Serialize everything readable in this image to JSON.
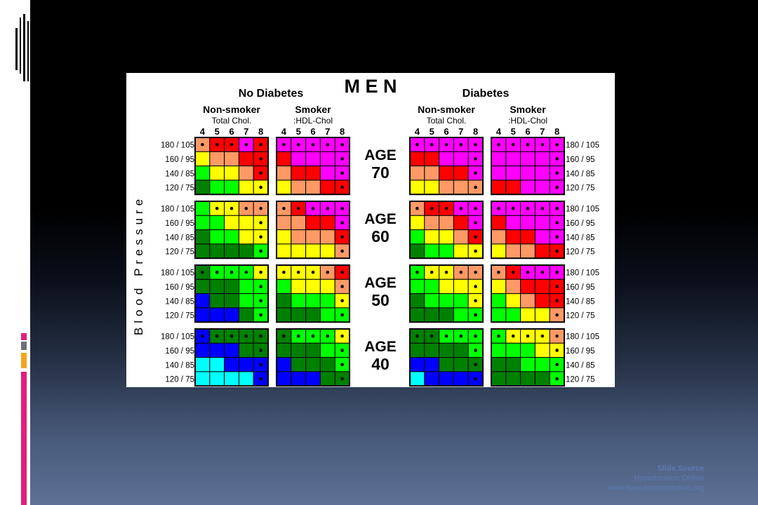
{
  "slide": {
    "source_heading": "Slide Source",
    "source_org": "Hypertension Online",
    "source_url": "www.hypertensiononline.org"
  },
  "colors": {
    "1": "#00FFFF",
    "2": "#0000FF",
    "3": "#008000",
    "4": "#00FF00",
    "5": "#FFFF00",
    "6": "#FF9966",
    "7": "#FF0000",
    "8": "#FF00FF"
  },
  "chart_data": {
    "type": "heatmap",
    "title": "M E N",
    "y_axis_label": "Blood Pressure",
    "group_labels": [
      "No Diabetes",
      "Diabetes"
    ],
    "subgroup_labels": [
      "Non-smoker",
      "Smoker"
    ],
    "subgroup_sublabels": [
      "Total Chol.",
      ":HDL-Chol"
    ],
    "column_labels": [
      "4",
      "5",
      "6",
      "7",
      "8"
    ],
    "row_labels": [
      "180 / 105",
      "160 / 95",
      "140 / 85",
      "120 / 75"
    ],
    "age_word": "AGE",
    "ages": [
      {
        "age": "70",
        "panels": [
          {
            "rows": [
              [
                6,
                7,
                7,
                8,
                7
              ],
              [
                5,
                6,
                6,
                7,
                7
              ],
              [
                4,
                5,
                5,
                6,
                7
              ],
              [
                3,
                4,
                4,
                5,
                5
              ]
            ],
            "dots": [
              [
                1,
                1,
                1,
                1,
                1
              ],
              [
                0,
                0,
                0,
                0,
                1
              ],
              [
                0,
                0,
                0,
                0,
                1
              ],
              [
                0,
                0,
                0,
                0,
                1
              ]
            ]
          },
          {
            "rows": [
              [
                8,
                8,
                8,
                8,
                8
              ],
              [
                7,
                8,
                8,
                8,
                8
              ],
              [
                6,
                7,
                7,
                8,
                8
              ],
              [
                5,
                6,
                6,
                7,
                7
              ]
            ],
            "dots": [
              [
                1,
                1,
                1,
                1,
                1
              ],
              [
                0,
                0,
                0,
                0,
                1
              ],
              [
                0,
                0,
                0,
                0,
                1
              ],
              [
                0,
                0,
                0,
                0,
                1
              ]
            ]
          },
          {
            "rows": [
              [
                8,
                8,
                8,
                8,
                8
              ],
              [
                7,
                7,
                8,
                8,
                8
              ],
              [
                6,
                6,
                7,
                7,
                8
              ],
              [
                5,
                5,
                6,
                6,
                6
              ]
            ],
            "dots": [
              [
                1,
                1,
                1,
                1,
                1
              ],
              [
                0,
                0,
                0,
                0,
                1
              ],
              [
                0,
                0,
                0,
                0,
                1
              ],
              [
                0,
                0,
                0,
                0,
                1
              ]
            ]
          },
          {
            "rows": [
              [
                8,
                8,
                8,
                8,
                8
              ],
              [
                8,
                8,
                8,
                8,
                8
              ],
              [
                8,
                8,
                8,
                8,
                8
              ],
              [
                7,
                7,
                8,
                8,
                8
              ]
            ],
            "dots": [
              [
                1,
                1,
                1,
                1,
                1
              ],
              [
                0,
                0,
                0,
                0,
                1
              ],
              [
                0,
                0,
                0,
                0,
                1
              ],
              [
                0,
                0,
                0,
                0,
                1
              ]
            ]
          }
        ]
      },
      {
        "age": "60",
        "panels": [
          {
            "rows": [
              [
                4,
                5,
                5,
                6,
                6
              ],
              [
                4,
                4,
                5,
                5,
                5
              ],
              [
                3,
                4,
                4,
                5,
                5
              ],
              [
                3,
                3,
                3,
                3,
                4
              ]
            ],
            "dots": [
              [
                0,
                1,
                1,
                1,
                1
              ],
              [
                0,
                0,
                0,
                0,
                1
              ],
              [
                0,
                0,
                0,
                0,
                1
              ],
              [
                0,
                0,
                0,
                0,
                1
              ]
            ]
          },
          {
            "rows": [
              [
                6,
                7,
                8,
                8,
                8
              ],
              [
                6,
                6,
                7,
                7,
                8
              ],
              [
                5,
                6,
                6,
                6,
                7
              ],
              [
                5,
                5,
                5,
                5,
                6
              ]
            ],
            "dots": [
              [
                1,
                1,
                1,
                1,
                1
              ],
              [
                0,
                0,
                0,
                0,
                1
              ],
              [
                0,
                0,
                0,
                0,
                1
              ],
              [
                0,
                0,
                0,
                0,
                1
              ]
            ]
          },
          {
            "rows": [
              [
                6,
                7,
                7,
                8,
                8
              ],
              [
                5,
                6,
                6,
                7,
                8
              ],
              [
                4,
                5,
                5,
                6,
                7
              ],
              [
                3,
                4,
                4,
                5,
                5
              ]
            ],
            "dots": [
              [
                1,
                1,
                1,
                1,
                1
              ],
              [
                0,
                0,
                0,
                0,
                1
              ],
              [
                0,
                0,
                0,
                0,
                1
              ],
              [
                0,
                0,
                0,
                0,
                1
              ]
            ]
          },
          {
            "rows": [
              [
                8,
                8,
                8,
                8,
                8
              ],
              [
                7,
                8,
                8,
                8,
                8
              ],
              [
                6,
                7,
                7,
                8,
                8
              ],
              [
                5,
                6,
                6,
                7,
                7
              ]
            ],
            "dots": [
              [
                1,
                1,
                1,
                1,
                1
              ],
              [
                0,
                0,
                0,
                0,
                1
              ],
              [
                0,
                0,
                0,
                0,
                1
              ],
              [
                0,
                0,
                0,
                0,
                1
              ]
            ]
          }
        ]
      },
      {
        "age": "50",
        "panels": [
          {
            "rows": [
              [
                3,
                4,
                4,
                4,
                5
              ],
              [
                3,
                3,
                3,
                4,
                4
              ],
              [
                2,
                3,
                3,
                4,
                4
              ],
              [
                2,
                2,
                2,
                3,
                4
              ]
            ],
            "dots": [
              [
                1,
                1,
                1,
                1,
                1
              ],
              [
                0,
                0,
                0,
                0,
                1
              ],
              [
                0,
                0,
                0,
                0,
                1
              ],
              [
                0,
                0,
                0,
                0,
                1
              ]
            ]
          },
          {
            "rows": [
              [
                5,
                5,
                5,
                6,
                7
              ],
              [
                4,
                5,
                5,
                5,
                6
              ],
              [
                3,
                4,
                4,
                4,
                5
              ],
              [
                3,
                3,
                3,
                4,
                4
              ]
            ],
            "dots": [
              [
                1,
                1,
                1,
                1,
                1
              ],
              [
                0,
                0,
                0,
                0,
                1
              ],
              [
                0,
                0,
                0,
                0,
                1
              ],
              [
                0,
                0,
                0,
                0,
                1
              ]
            ]
          },
          {
            "rows": [
              [
                4,
                5,
                5,
                6,
                6
              ],
              [
                4,
                4,
                5,
                5,
                5
              ],
              [
                3,
                4,
                4,
                4,
                5
              ],
              [
                3,
                3,
                3,
                4,
                4
              ]
            ],
            "dots": [
              [
                1,
                1,
                1,
                1,
                1
              ],
              [
                0,
                0,
                0,
                0,
                1
              ],
              [
                0,
                0,
                0,
                0,
                1
              ],
              [
                0,
                0,
                0,
                0,
                1
              ]
            ]
          },
          {
            "rows": [
              [
                6,
                7,
                8,
                8,
                8
              ],
              [
                5,
                6,
                7,
                7,
                7
              ],
              [
                4,
                5,
                6,
                7,
                7
              ],
              [
                4,
                4,
                5,
                5,
                6
              ]
            ],
            "dots": [
              [
                1,
                1,
                1,
                1,
                1
              ],
              [
                0,
                0,
                0,
                0,
                1
              ],
              [
                0,
                0,
                0,
                0,
                1
              ],
              [
                0,
                0,
                0,
                0,
                1
              ]
            ]
          }
        ]
      },
      {
        "age": "40",
        "panels": [
          {
            "rows": [
              [
                2,
                3,
                3,
                3,
                3
              ],
              [
                2,
                2,
                2,
                3,
                3
              ],
              [
                1,
                1,
                2,
                2,
                2
              ],
              [
                1,
                1,
                1,
                1,
                2
              ]
            ],
            "dots": [
              [
                1,
                1,
                1,
                1,
                1
              ],
              [
                0,
                0,
                0,
                0,
                1
              ],
              [
                0,
                0,
                0,
                0,
                1
              ],
              [
                0,
                0,
                0,
                0,
                1
              ]
            ]
          },
          {
            "rows": [
              [
                3,
                4,
                4,
                4,
                5
              ],
              [
                3,
                3,
                3,
                4,
                4
              ],
              [
                2,
                3,
                3,
                3,
                4
              ],
              [
                2,
                2,
                2,
                3,
                3
              ]
            ],
            "dots": [
              [
                1,
                1,
                1,
                1,
                1
              ],
              [
                0,
                0,
                0,
                0,
                1
              ],
              [
                0,
                0,
                0,
                0,
                1
              ],
              [
                0,
                0,
                0,
                0,
                1
              ]
            ]
          },
          {
            "rows": [
              [
                3,
                3,
                4,
                4,
                4
              ],
              [
                3,
                3,
                3,
                3,
                4
              ],
              [
                2,
                2,
                3,
                3,
                3
              ],
              [
                1,
                2,
                2,
                2,
                2
              ]
            ],
            "dots": [
              [
                1,
                1,
                1,
                1,
                1
              ],
              [
                0,
                0,
                0,
                0,
                1
              ],
              [
                0,
                0,
                0,
                0,
                1
              ],
              [
                0,
                0,
                0,
                0,
                1
              ]
            ]
          },
          {
            "rows": [
              [
                4,
                5,
                5,
                5,
                6
              ],
              [
                4,
                4,
                4,
                5,
                5
              ],
              [
                3,
                3,
                4,
                4,
                4
              ],
              [
                3,
                3,
                3,
                3,
                4
              ]
            ],
            "dots": [
              [
                1,
                1,
                1,
                1,
                1
              ],
              [
                0,
                0,
                0,
                0,
                1
              ],
              [
                0,
                0,
                0,
                0,
                1
              ],
              [
                0,
                0,
                0,
                0,
                1
              ]
            ]
          }
        ]
      }
    ]
  }
}
